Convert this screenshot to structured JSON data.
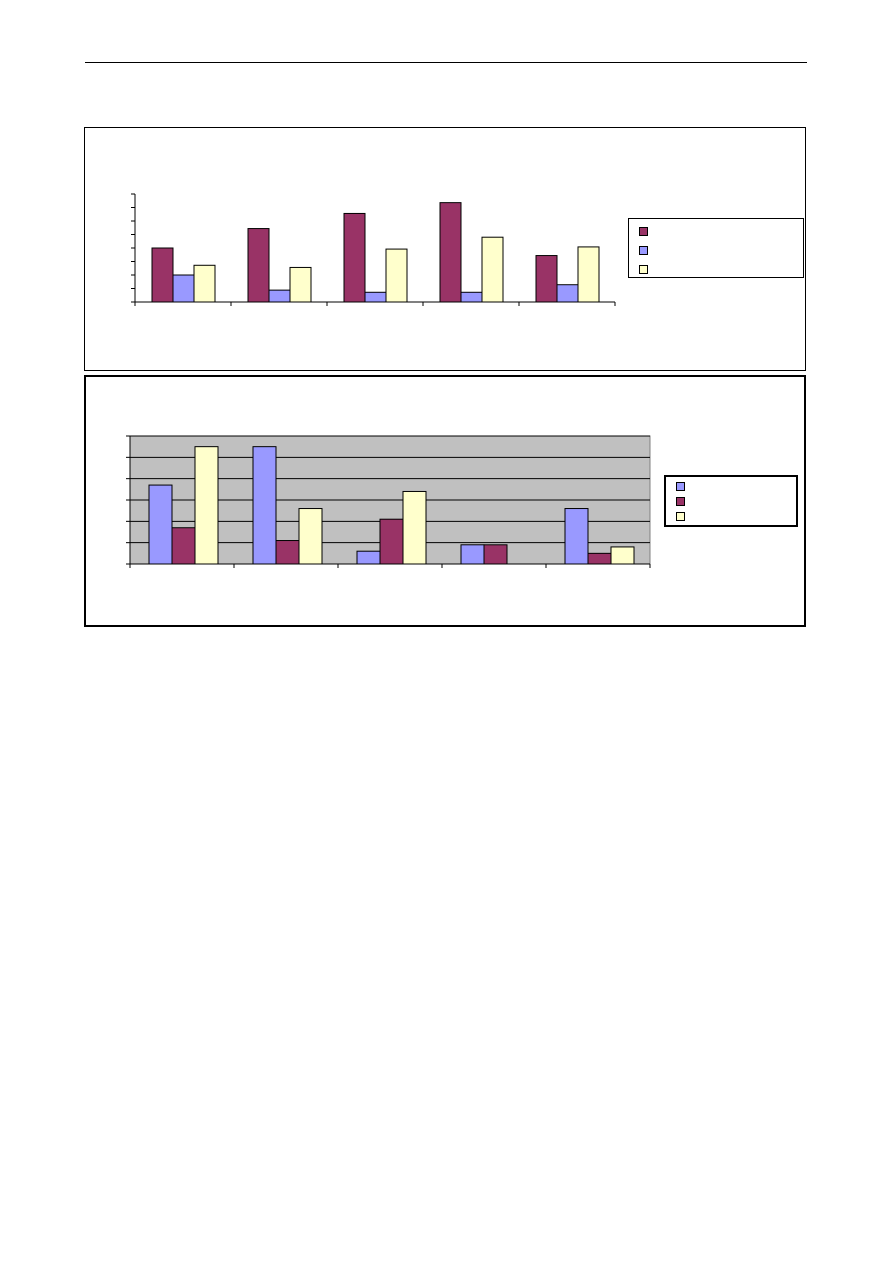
{
  "chart_data": [
    {
      "type": "bar",
      "title": "",
      "xlabel": "",
      "ylabel": "",
      "categories": [
        "",
        "",
        "",
        "",
        ""
      ],
      "series": [
        {
          "values": [
            5.0,
            6.8,
            8.2,
            9.2,
            4.3
          ],
          "color": "#993366"
        },
        {
          "values": [
            2.5,
            1.1,
            0.9,
            0.9,
            1.6
          ],
          "color": "#9999ff"
        },
        {
          "values": [
            3.4,
            3.2,
            4.9,
            6.0,
            5.1
          ],
          "color": "#ffffcc"
        }
      ],
      "ylim": [
        0,
        10
      ],
      "grid": false,
      "plot_background": "#ffffff",
      "legend": "right"
    },
    {
      "type": "bar",
      "title": "",
      "xlabel": "",
      "ylabel": "",
      "categories": [
        "",
        "",
        "",
        "",
        ""
      ],
      "series": [
        {
          "values": [
            3.7,
            5.5,
            0.6,
            0.9,
            2.6
          ],
          "color": "#9999ff"
        },
        {
          "values": [
            1.7,
            1.1,
            2.1,
            0.9,
            0.5
          ],
          "color": "#993366"
        },
        {
          "values": [
            5.5,
            2.6,
            3.4,
            0.0,
            0.8
          ],
          "color": "#ffffcc"
        }
      ],
      "ylim": [
        0,
        6
      ],
      "grid": true,
      "plot_background": "#c0c0c0",
      "legend": "right"
    }
  ]
}
